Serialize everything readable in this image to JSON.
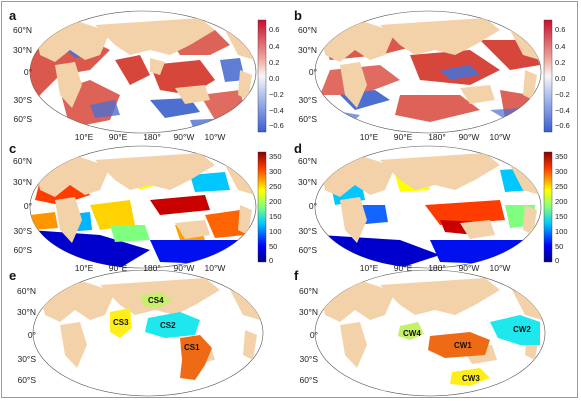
{
  "panels": {
    "a": {
      "letter": "a"
    },
    "b": {
      "letter": "b"
    },
    "c": {
      "letter": "c"
    },
    "d": {
      "letter": "d"
    },
    "e": {
      "letter": "e"
    },
    "f": {
      "letter": "f"
    }
  },
  "lat_labels": [
    "60°N",
    "30°N",
    "0°",
    "30°S",
    "60°S"
  ],
  "lon_labels": [
    "10°E",
    "90°E",
    "180°",
    "90°W",
    "10°W"
  ],
  "corr_colorbar": {
    "ticks": [
      "0.6",
      "0.4",
      "0.2",
      "0.0",
      "−0.2",
      "−0.4",
      "−0.6"
    ]
  },
  "phase_colorbar": {
    "ticks": [
      "350",
      "300",
      "250",
      "200",
      "150",
      "100",
      "50",
      "0"
    ]
  },
  "regions_e": [
    "CS4",
    "CS3",
    "CS2",
    "CS1"
  ],
  "regions_f": [
    "CW4",
    "CW2",
    "CW1",
    "CW3"
  ],
  "colors": {
    "land": "#f3d2aa",
    "ocean": "#ffffff",
    "pos": "#d7463a",
    "neg": "#4c6fd0",
    "cs_green": "#c4f06a",
    "cs_yellow": "#ffee1a",
    "cs_cyan": "#1ee7ee",
    "cs_orange": "#ee6a14"
  }
}
